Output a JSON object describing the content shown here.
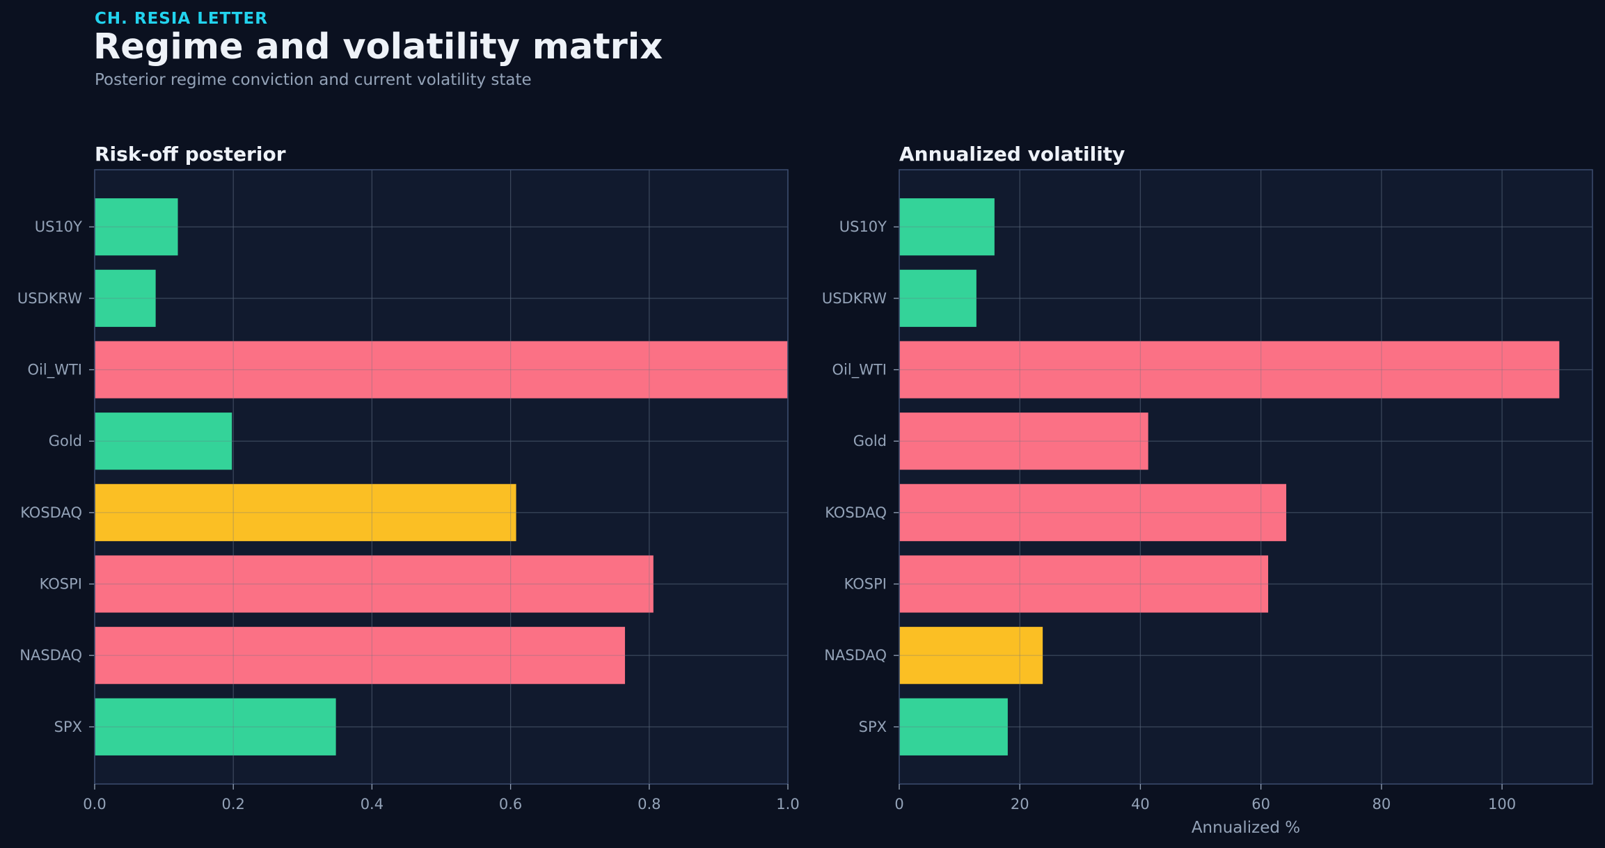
{
  "header": {
    "eyebrow": "CH. RESIA LETTER",
    "title": "Regime and volatility matrix",
    "subtitle": "Posterior regime conviction and current volatility state"
  },
  "colors": {
    "background": "#0b1120",
    "panel": "#111a2e",
    "grid": "#233047",
    "axis": "#3a4a6b",
    "text": "#eef2f8",
    "muted": "#94a3b8",
    "low": "#34d399",
    "mid": "#fbbf24",
    "high": "#fb7185"
  },
  "chart_data": [
    {
      "type": "bar",
      "orientation": "horizontal",
      "title": "Risk-off posterior",
      "xlabel": "",
      "categories": [
        "US10Y",
        "USDKRW",
        "Oil_WTI",
        "Gold",
        "KOSDAQ",
        "KOSPI",
        "NASDAQ",
        "SPX"
      ],
      "values": [
        0.12,
        0.088,
        1.0,
        0.198,
        0.608,
        0.806,
        0.765,
        0.348
      ],
      "bar_colors": [
        "low",
        "low",
        "high",
        "low",
        "mid",
        "high",
        "high",
        "low"
      ],
      "xlim": [
        0,
        1.0
      ],
      "xticks": [
        0.0,
        0.2,
        0.4,
        0.6,
        0.8,
        1.0
      ],
      "xtick_labels": [
        "0.0",
        "0.2",
        "0.4",
        "0.6",
        "0.8",
        "1.0"
      ],
      "grid": true
    },
    {
      "type": "bar",
      "orientation": "horizontal",
      "title": "Annualized volatility",
      "xlabel": "Annualized %",
      "categories": [
        "US10Y",
        "USDKRW",
        "Oil_WTI",
        "Gold",
        "KOSDAQ",
        "KOSPI",
        "NASDAQ",
        "SPX"
      ],
      "values": [
        15.8,
        12.8,
        109.5,
        41.3,
        64.2,
        61.2,
        23.8,
        18.0
      ],
      "bar_colors": [
        "low",
        "low",
        "high",
        "high",
        "high",
        "high",
        "mid",
        "low"
      ],
      "xlim": [
        0,
        115
      ],
      "xticks": [
        0,
        20,
        40,
        60,
        80,
        100
      ],
      "xtick_labels": [
        "0",
        "20",
        "40",
        "60",
        "80",
        "100"
      ],
      "grid": true
    }
  ]
}
